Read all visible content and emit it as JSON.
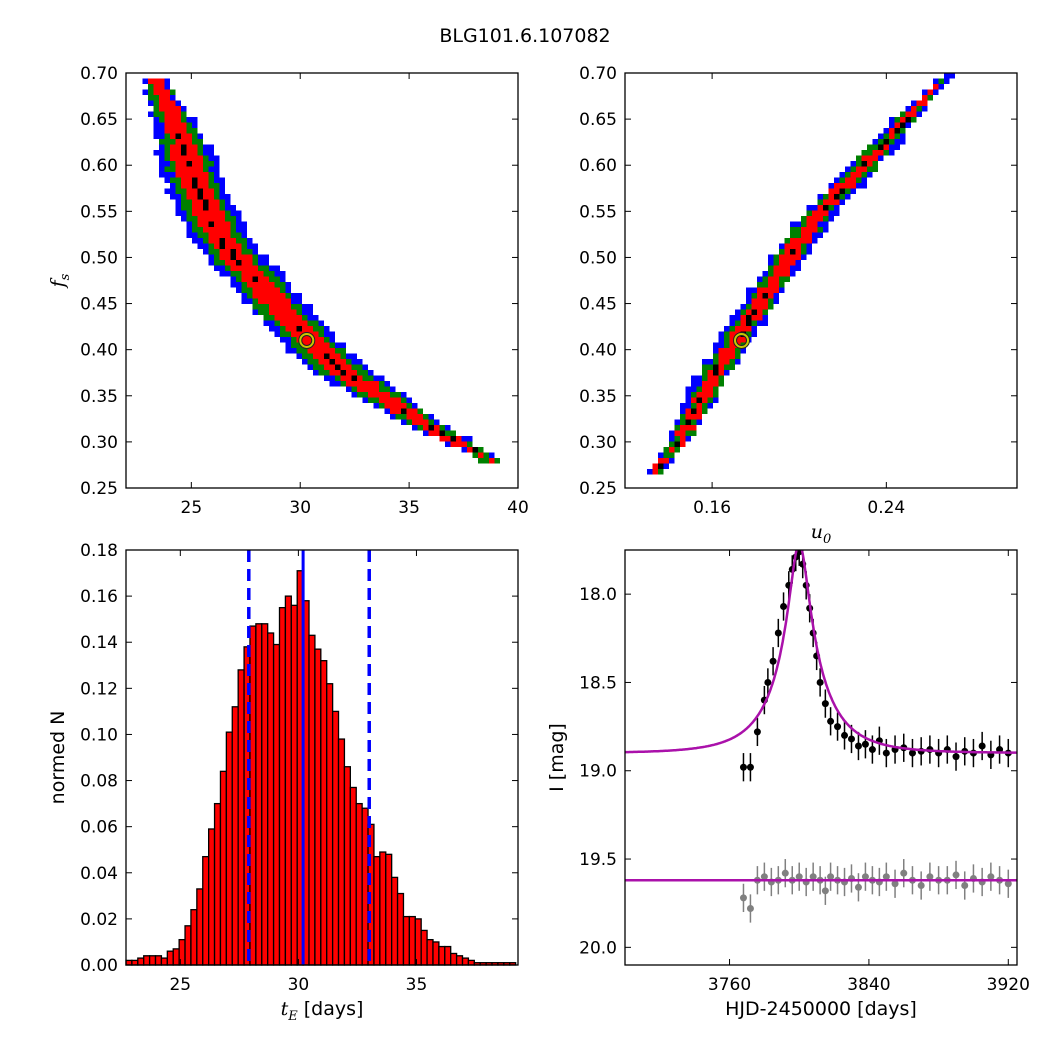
{
  "figure": {
    "title": "BLG101.6.107082"
  },
  "colors": {
    "level1": "#0000ff",
    "level2": "#008000",
    "level3": "#ff0000",
    "level4": "#000000",
    "hist_bar": "#ff0000",
    "hist_line": "#0000ff",
    "model": "#aa11aa",
    "obs": "#000000",
    "residual": "#808080"
  },
  "chart_data": [
    {
      "id": "ts_vs_fs",
      "type": "heatmap",
      "title": "",
      "xlabel": "",
      "ylabel": "f_s",
      "xlim": [
        22,
        40
      ],
      "ylim": [
        0.25,
        0.7
      ],
      "xticks": [
        "25",
        "30",
        "35",
        "40"
      ],
      "yticks": [
        "0.25",
        "0.30",
        "0.35",
        "0.40",
        "0.45",
        "0.50",
        "0.55",
        "0.60",
        "0.65",
        "0.70"
      ],
      "ridge": [
        [
          23.3,
          0.695
        ],
        [
          24.5,
          0.63
        ],
        [
          25.5,
          0.56
        ],
        [
          26.5,
          0.515
        ],
        [
          28,
          0.475
        ],
        [
          30,
          0.42
        ],
        [
          32,
          0.375
        ],
        [
          34,
          0.345
        ],
        [
          36,
          0.315
        ],
        [
          38,
          0.29
        ],
        [
          39,
          0.275
        ]
      ],
      "best_fit": {
        "x": 30.3,
        "y": 0.41,
        "marker": "circle"
      },
      "levels": [
        "blue",
        "green",
        "red",
        "black"
      ]
    },
    {
      "id": "u0_vs_fs",
      "type": "heatmap",
      "title": "",
      "xlabel": "u_0",
      "ylabel": "",
      "xlim": [
        0.12,
        0.3
      ],
      "ylim": [
        0.25,
        0.7
      ],
      "xticks": [
        "0.16",
        "0.24"
      ],
      "yticks": [
        "0.25",
        "0.30",
        "0.35",
        "0.40",
        "0.45",
        "0.50",
        "0.55",
        "0.60",
        "0.65",
        "0.70"
      ],
      "ridge": [
        [
          0.133,
          0.265
        ],
        [
          0.145,
          0.3
        ],
        [
          0.16,
          0.37
        ],
        [
          0.175,
          0.425
        ],
        [
          0.19,
          0.48
        ],
        [
          0.205,
          0.535
        ],
        [
          0.22,
          0.575
        ],
        [
          0.24,
          0.625
        ],
        [
          0.255,
          0.665
        ],
        [
          0.27,
          0.7
        ]
      ],
      "best_fit": {
        "x": 0.1735,
        "y": 0.41,
        "marker": "circle"
      },
      "levels": [
        "blue",
        "green",
        "red",
        "black"
      ]
    },
    {
      "id": "tE_hist",
      "type": "bar",
      "title": "",
      "xlabel": "t_E [days]",
      "ylabel": "normed N",
      "xlim": [
        22.7,
        39.3
      ],
      "ylim": [
        0,
        0.18
      ],
      "xticks": [
        "25",
        "30",
        "35"
      ],
      "yticks": [
        "0.00",
        "0.02",
        "0.04",
        "0.06",
        "0.08",
        "0.10",
        "0.12",
        "0.14",
        "0.16",
        "0.18"
      ],
      "bin_start": 22.7,
      "bin_width": 0.25,
      "values": [
        0.002,
        0.002,
        0.003,
        0.004,
        0.004,
        0.004,
        0.003,
        0.006,
        0.007,
        0.011,
        0.017,
        0.024,
        0.033,
        0.047,
        0.059,
        0.07,
        0.084,
        0.101,
        0.112,
        0.128,
        0.138,
        0.147,
        0.148,
        0.148,
        0.144,
        0.139,
        0.155,
        0.16,
        0.156,
        0.171,
        0.158,
        0.143,
        0.137,
        0.132,
        0.122,
        0.11,
        0.098,
        0.086,
        0.077,
        0.07,
        0.068,
        0.061,
        0.047,
        0.049,
        0.048,
        0.038,
        0.031,
        0.021,
        0.021,
        0.02,
        0.015,
        0.011,
        0.01,
        0.008,
        0.008,
        0.005,
        0.004,
        0.003,
        0.002,
        0.001,
        0.001,
        0.001,
        0.001,
        0.001,
        0.001,
        0.001
      ],
      "median": 30.2,
      "lower": 27.9,
      "upper": 33.0
    },
    {
      "id": "lightcurve",
      "type": "scatter",
      "title": "",
      "xlabel": "HJD-2450000 [days]",
      "ylabel": "I [mag]",
      "xlim": [
        3700,
        3925
      ],
      "ylim": [
        20.1,
        17.75
      ],
      "xticks": [
        "3760",
        "3840",
        "3920"
      ],
      "yticks": [
        "18.0",
        "18.5",
        "19.0",
        "19.5",
        "20.0"
      ],
      "model": {
        "t0": 3800,
        "tE": 30.3,
        "u0": 0.1735,
        "fs": 0.41,
        "baseline": 18.9
      },
      "residual_baseline": 19.62,
      "series": [
        {
          "role": "observed",
          "points": [
            [
              3768,
              18.98
            ],
            [
              3772,
              18.98
            ],
            [
              3776,
              18.78
            ],
            [
              3780,
              18.6
            ],
            [
              3782,
              18.5
            ],
            [
              3785,
              18.38
            ],
            [
              3788,
              18.22
            ],
            [
              3791,
              18.07
            ],
            [
              3794,
              17.95
            ],
            [
              3796,
              17.86
            ],
            [
              3798,
              17.79
            ],
            [
              3800,
              17.76
            ],
            [
              3802,
              17.83
            ],
            [
              3804,
              17.95
            ],
            [
              3806,
              18.08
            ],
            [
              3808,
              18.22
            ],
            [
              3810,
              18.35
            ],
            [
              3812,
              18.5
            ],
            [
              3815,
              18.62
            ],
            [
              3818,
              18.72
            ],
            [
              3822,
              18.75
            ],
            [
              3826,
              18.8
            ],
            [
              3830,
              18.82
            ],
            [
              3834,
              18.86
            ],
            [
              3838,
              18.85
            ],
            [
              3842,
              18.88
            ],
            [
              3846,
              18.83
            ],
            [
              3850,
              18.9
            ],
            [
              3855,
              18.88
            ],
            [
              3860,
              18.87
            ],
            [
              3865,
              18.9
            ],
            [
              3870,
              18.89
            ],
            [
              3875,
              18.88
            ],
            [
              3880,
              18.9
            ],
            [
              3885,
              18.88
            ],
            [
              3890,
              18.92
            ],
            [
              3895,
              18.89
            ],
            [
              3900,
              18.9
            ],
            [
              3905,
              18.86
            ],
            [
              3910,
              18.91
            ],
            [
              3915,
              18.88
            ],
            [
              3920,
              18.9
            ]
          ],
          "err": 0.08
        },
        {
          "role": "residual",
          "points": [
            [
              3768,
              19.72
            ],
            [
              3772,
              19.78
            ],
            [
              3776,
              19.62
            ],
            [
              3780,
              19.6
            ],
            [
              3784,
              19.63
            ],
            [
              3788,
              19.62
            ],
            [
              3792,
              19.58
            ],
            [
              3796,
              19.62
            ],
            [
              3800,
              19.6
            ],
            [
              3804,
              19.63
            ],
            [
              3808,
              19.6
            ],
            [
              3812,
              19.62
            ],
            [
              3815,
              19.68
            ],
            [
              3818,
              19.6
            ],
            [
              3822,
              19.62
            ],
            [
              3826,
              19.63
            ],
            [
              3830,
              19.61
            ],
            [
              3834,
              19.66
            ],
            [
              3838,
              19.6
            ],
            [
              3842,
              19.62
            ],
            [
              3846,
              19.63
            ],
            [
              3850,
              19.6
            ],
            [
              3855,
              19.64
            ],
            [
              3860,
              19.58
            ],
            [
              3865,
              19.62
            ],
            [
              3870,
              19.65
            ],
            [
              3875,
              19.6
            ],
            [
              3880,
              19.62
            ],
            [
              3885,
              19.62
            ],
            [
              3890,
              19.59
            ],
            [
              3895,
              19.65
            ],
            [
              3900,
              19.61
            ],
            [
              3905,
              19.63
            ],
            [
              3910,
              19.6
            ],
            [
              3915,
              19.62
            ],
            [
              3920,
              19.64
            ]
          ],
          "err": 0.08
        }
      ]
    }
  ]
}
